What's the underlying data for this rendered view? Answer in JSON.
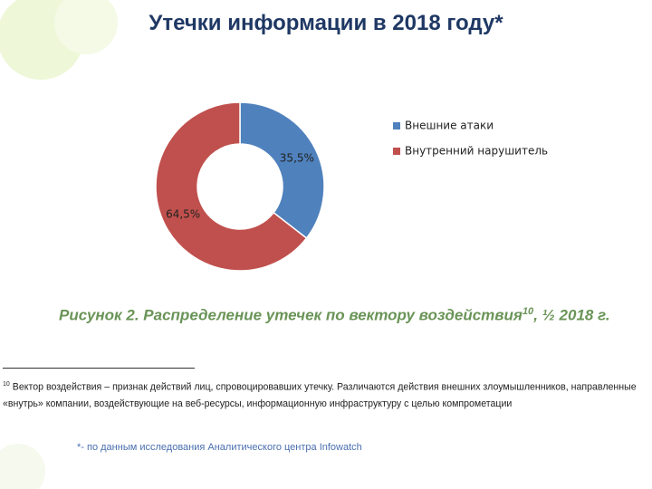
{
  "title": "Утечки информации в 2018 году*",
  "chart_data": {
    "type": "donut",
    "categories": [
      "Внешние атаки",
      "Внутренний нарушитель"
    ],
    "values": [
      35.5,
      64.5
    ],
    "value_labels": [
      "35,5%",
      "64,5%"
    ],
    "colors": [
      "#4f81bd",
      "#c0504d"
    ]
  },
  "caption": {
    "text": "Рисунок 2. Распределение утечек по вектору воздействия",
    "sup": "10",
    "suffix": ", ½ 2018 г."
  },
  "footnote": {
    "number": "10",
    "text": "Вектор воздействия – признак действий лиц, спровоцировавших утечку. Различаются действия внешних злоумышленников, направленные «внутрь» компании, воздействующие на веб-ресурсы, информационную инфраструктуру с целью компрометации"
  },
  "source_note": "*- по данным исследования Аналитического центра Infowatch"
}
